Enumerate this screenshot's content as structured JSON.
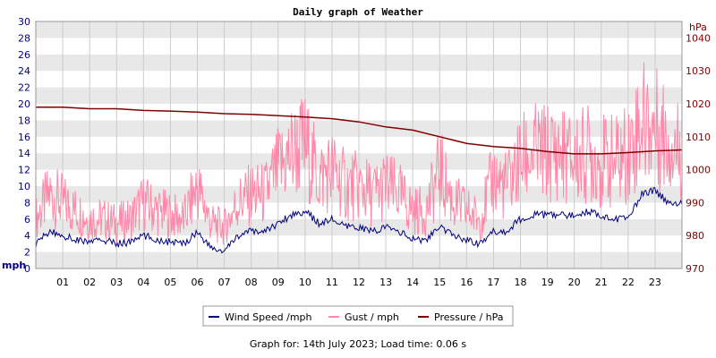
{
  "chart_data": {
    "type": "line",
    "title": "Daily graph of Weather",
    "footer": "Graph for: 14th July 2023; Load time: 0.06 s",
    "left_axis": {
      "unit_label": "mph",
      "range": [
        0,
        30
      ],
      "ticks": [
        "0",
        "2",
        "4",
        "6",
        "8",
        "10",
        "12",
        "14",
        "16",
        "18",
        "20",
        "22",
        "24",
        "26",
        "28",
        "30"
      ],
      "color": "#000080"
    },
    "right_axis": {
      "unit_label": "hPa",
      "range": [
        970,
        1045
      ],
      "ticks": [
        "970",
        "980",
        "990",
        "1000",
        "1010",
        "1020",
        "1030",
        "1040"
      ],
      "color": "#800000"
    },
    "x_axis": {
      "range": [
        0,
        24
      ],
      "ticks": [
        "01",
        "02",
        "03",
        "04",
        "05",
        "06",
        "07",
        "08",
        "09",
        "10",
        "11",
        "12",
        "13",
        "14",
        "15",
        "16",
        "17",
        "18",
        "19",
        "20",
        "21",
        "22",
        "23"
      ]
    },
    "grid": true,
    "legend_position": "bottom-center",
    "series": [
      {
        "name": "Wind Speed /mph",
        "color": "#000080",
        "x": [
          0,
          0.5,
          1,
          1.5,
          2,
          2.5,
          3,
          3.5,
          4,
          4.5,
          5,
          5.5,
          6,
          6.5,
          7,
          7.5,
          8,
          8.5,
          9,
          9.5,
          10,
          10.5,
          11,
          11.5,
          12,
          12.5,
          13,
          13.5,
          14,
          14.5,
          15,
          15.5,
          16,
          16.5,
          17,
          17.5,
          18,
          18.5,
          19,
          19.5,
          20,
          20.5,
          21,
          21.5,
          22,
          22.5,
          23,
          23.5,
          24
        ],
        "values": [
          3,
          4.5,
          4,
          3.5,
          3.2,
          3.5,
          3,
          3.2,
          4,
          3.5,
          3.2,
          3,
          4.5,
          2.5,
          2,
          4,
          4.5,
          4.5,
          5.5,
          6.5,
          7,
          5.5,
          6,
          5,
          5,
          4.5,
          5,
          4.5,
          3.5,
          3.5,
          5,
          4,
          3.5,
          3,
          4.5,
          4.5,
          6,
          6.5,
          6.5,
          6.5,
          6.5,
          7,
          6.5,
          6,
          6,
          9,
          9.5,
          8,
          8
        ]
      },
      {
        "name": "Gust / mph",
        "color": "#ff88aa",
        "x": [
          0,
          0.5,
          1,
          1.5,
          2,
          2.5,
          3,
          3.5,
          4,
          4.5,
          5,
          5.5,
          6,
          6.5,
          7,
          7.5,
          8,
          8.5,
          9,
          9.5,
          10,
          10.5,
          11,
          11.5,
          12,
          12.5,
          13,
          13.5,
          14,
          14.5,
          15,
          15.5,
          16,
          16.5,
          17,
          17.5,
          18,
          18.5,
          19,
          19.5,
          20,
          20.5,
          21,
          21.5,
          22,
          22.5,
          23,
          23.5,
          24
        ],
        "values": [
          6,
          9,
          8,
          7,
          6,
          6,
          5.5,
          6,
          8,
          7,
          6.5,
          6,
          10,
          5.5,
          5,
          8,
          9,
          9,
          12,
          14,
          15,
          11,
          12,
          10,
          10,
          9,
          10,
          9,
          7,
          7,
          12,
          8,
          7,
          6,
          11,
          10,
          13,
          14,
          14,
          14,
          13,
          14,
          13,
          13,
          14,
          18,
          17,
          16,
          14
        ]
      },
      {
        "name": "Pressure / hPa",
        "color": "#800000",
        "axis": "right",
        "x": [
          0,
          1,
          2,
          3,
          4,
          5,
          6,
          7,
          8,
          9,
          10,
          11,
          12,
          13,
          14,
          15,
          16,
          17,
          18,
          19,
          20,
          21,
          22,
          23,
          24
        ],
        "values": [
          1019,
          1019,
          1018.5,
          1018.5,
          1018,
          1017.8,
          1017.5,
          1017,
          1016.8,
          1016.4,
          1016,
          1015.5,
          1014.5,
          1013,
          1012,
          1010,
          1008,
          1007,
          1006.5,
          1005.5,
          1004.8,
          1004.8,
          1005.2,
          1005.7,
          1006
        ]
      }
    ]
  }
}
